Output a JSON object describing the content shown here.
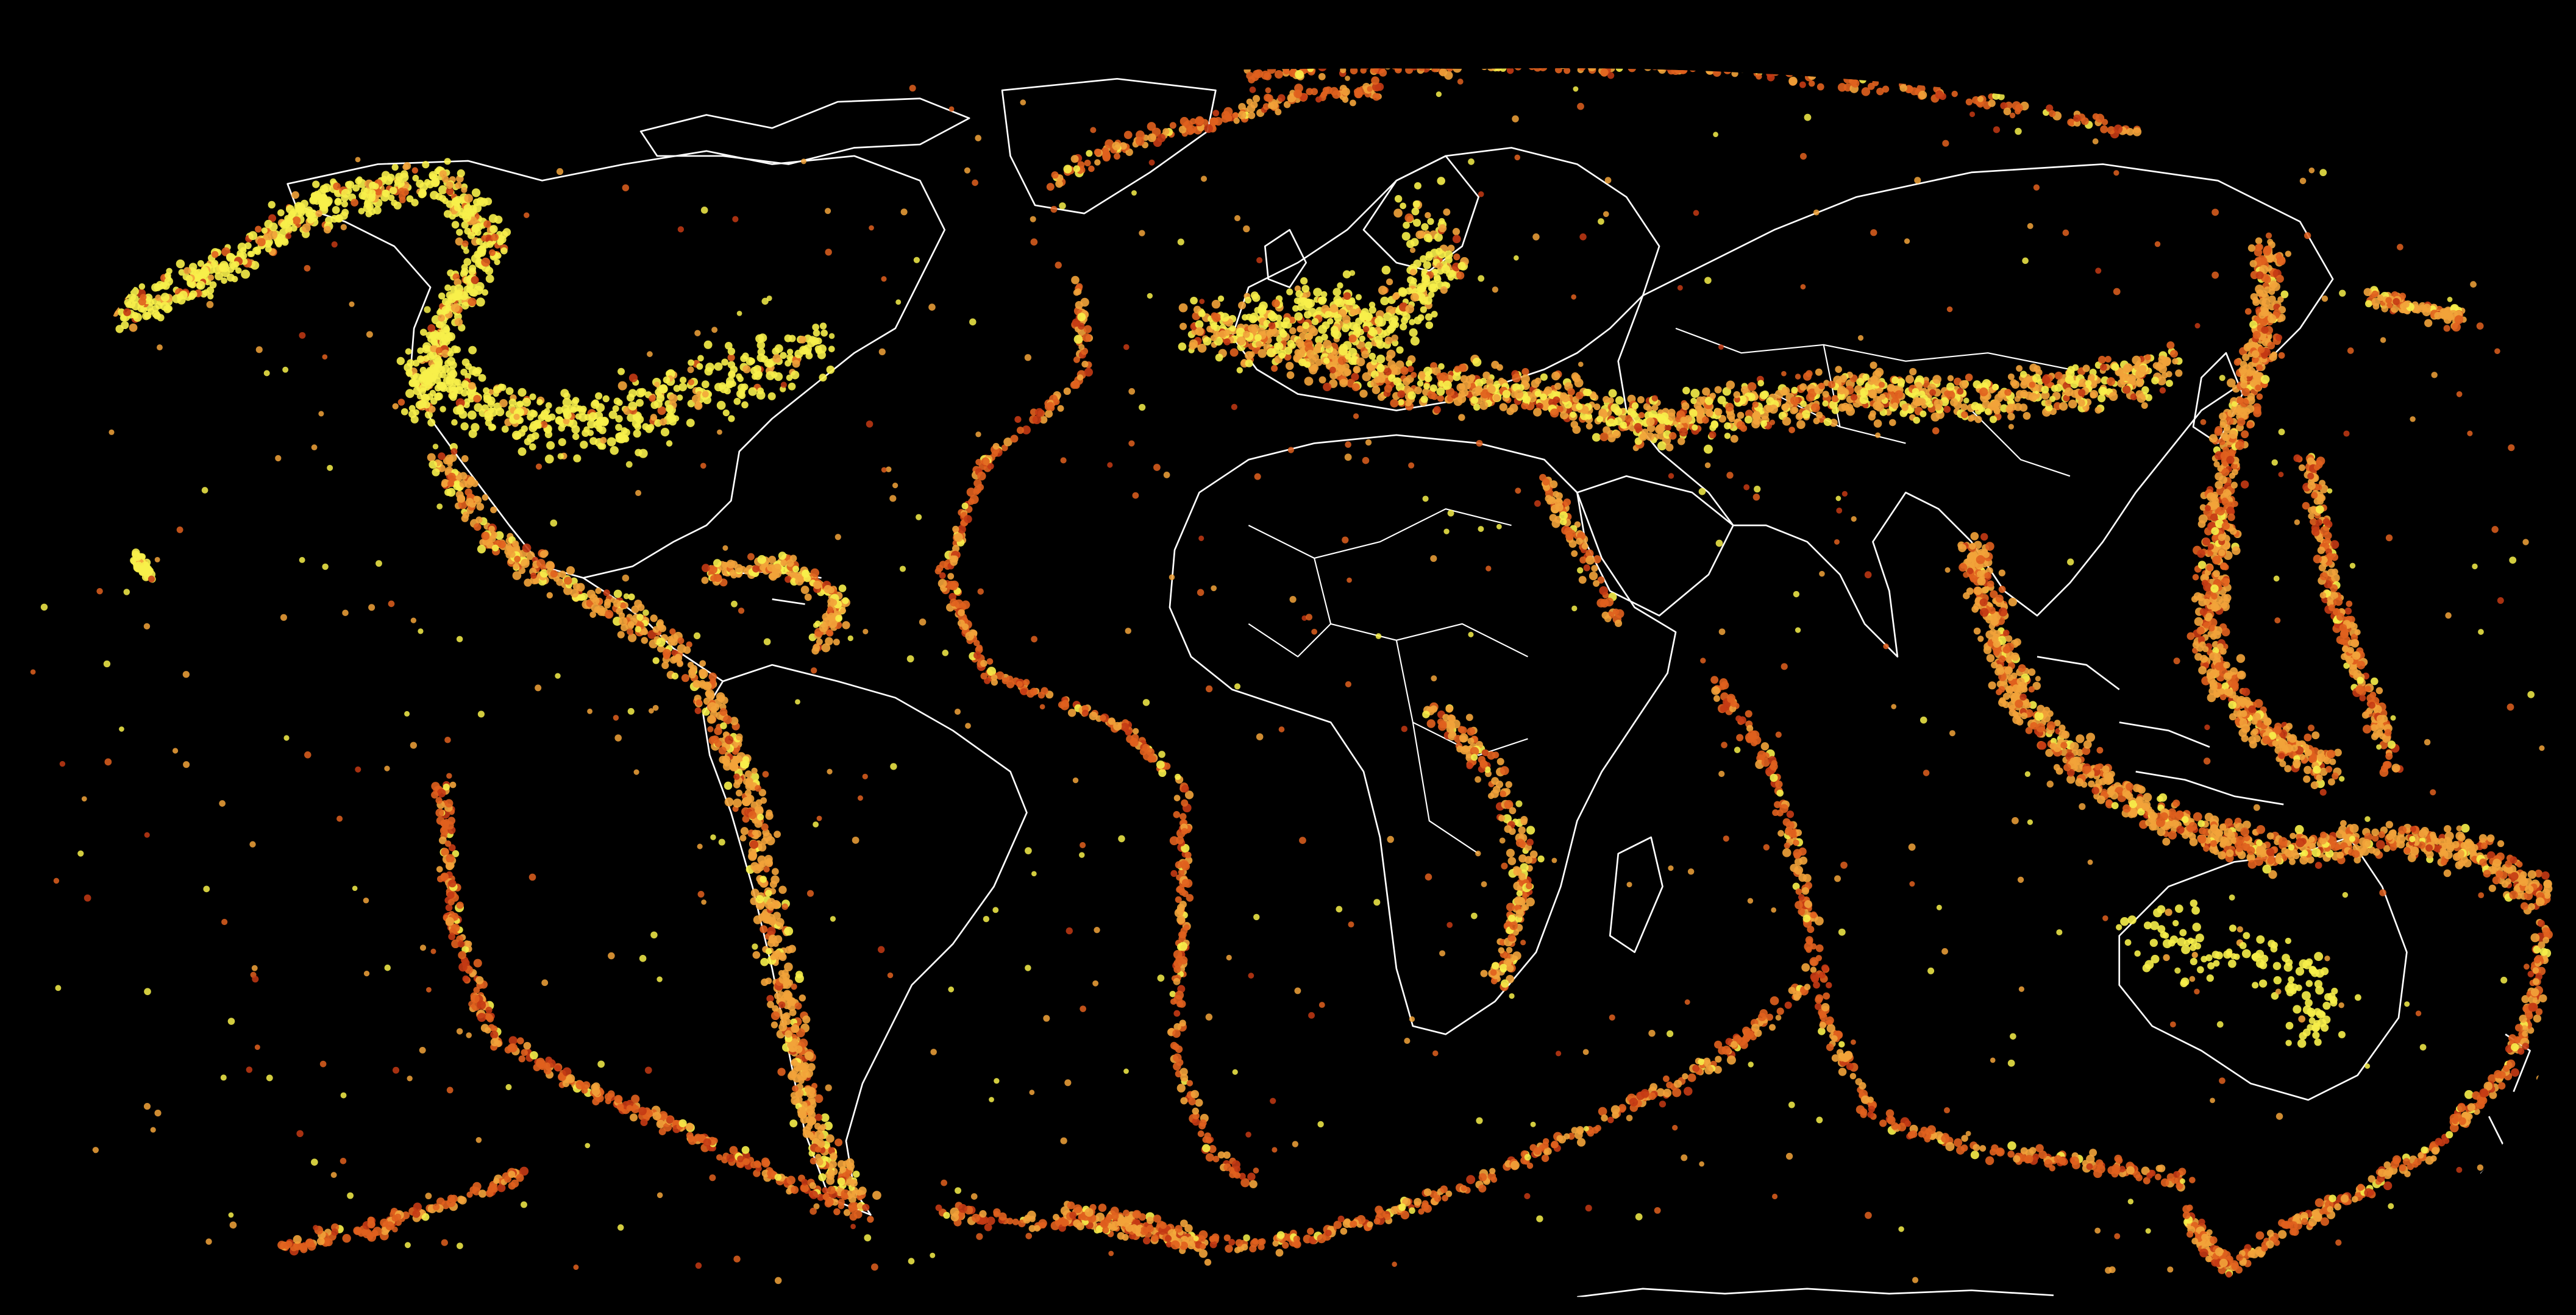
{
  "map": {
    "background": "#000000",
    "coastline_color": "#ffffff",
    "depth_palette": {
      "shallow": "#f7f04a",
      "intermediate": "#f2a33a",
      "deep": "#e0601e",
      "deepest": "#c43a14"
    }
  }
}
